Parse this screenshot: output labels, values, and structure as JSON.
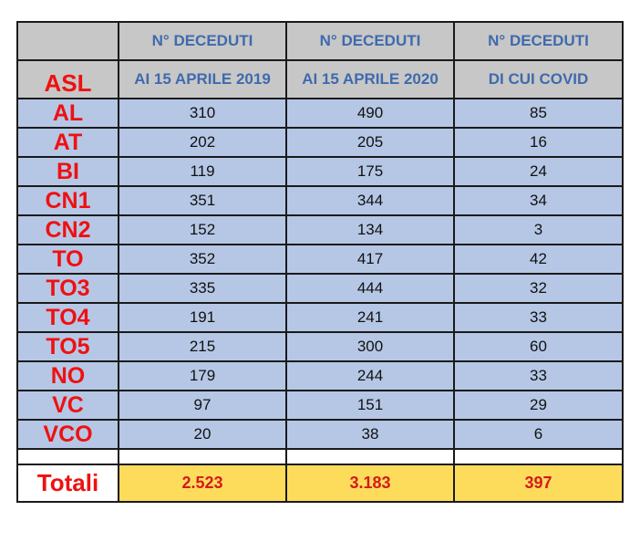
{
  "table": {
    "header": {
      "row1": [
        "",
        "N° DECEDUTI",
        "N° DECEDUTI",
        "N° DECEDUTI"
      ],
      "row2": [
        "ASL",
        "AI 15 APRILE 2019",
        "AI 15 APRILE 2020",
        "DI CUI COVID"
      ]
    },
    "rows": [
      {
        "asl": "AL",
        "y2019": "310",
        "y2020": "490",
        "covid": "85"
      },
      {
        "asl": "AT",
        "y2019": "202",
        "y2020": "205",
        "covid": "16"
      },
      {
        "asl": "BI",
        "y2019": "119",
        "y2020": "175",
        "covid": "24"
      },
      {
        "asl": "CN1",
        "y2019": "351",
        "y2020": "344",
        "covid": "34"
      },
      {
        "asl": "CN2",
        "y2019": "152",
        "y2020": "134",
        "covid": "3"
      },
      {
        "asl": "TO",
        "y2019": "352",
        "y2020": "417",
        "covid": "42"
      },
      {
        "asl": "TO3",
        "y2019": "335",
        "y2020": "444",
        "covid": "32"
      },
      {
        "asl": "TO4",
        "y2019": "191",
        "y2020": "241",
        "covid": "33"
      },
      {
        "asl": "TO5",
        "y2019": "215",
        "y2020": "300",
        "covid": "60"
      },
      {
        "asl": "NO",
        "y2019": "179",
        "y2020": "244",
        "covid": "33"
      },
      {
        "asl": "VC",
        "y2019": "97",
        "y2020": "151",
        "covid": "29"
      },
      {
        "asl": "VCO",
        "y2019": "20",
        "y2020": "38",
        "covid": "6"
      }
    ],
    "totals": {
      "label": "Totali",
      "y2019": "2.523",
      "y2020": "3.183",
      "covid": "397"
    }
  },
  "colors": {
    "header_bg": "#c7c7c7",
    "header_text": "#3f6aad",
    "row_bg": "#b6c7e6",
    "asl_text": "#ee1111",
    "totals_bg": "#fddc5c",
    "totals_text": "#d51a1a"
  }
}
